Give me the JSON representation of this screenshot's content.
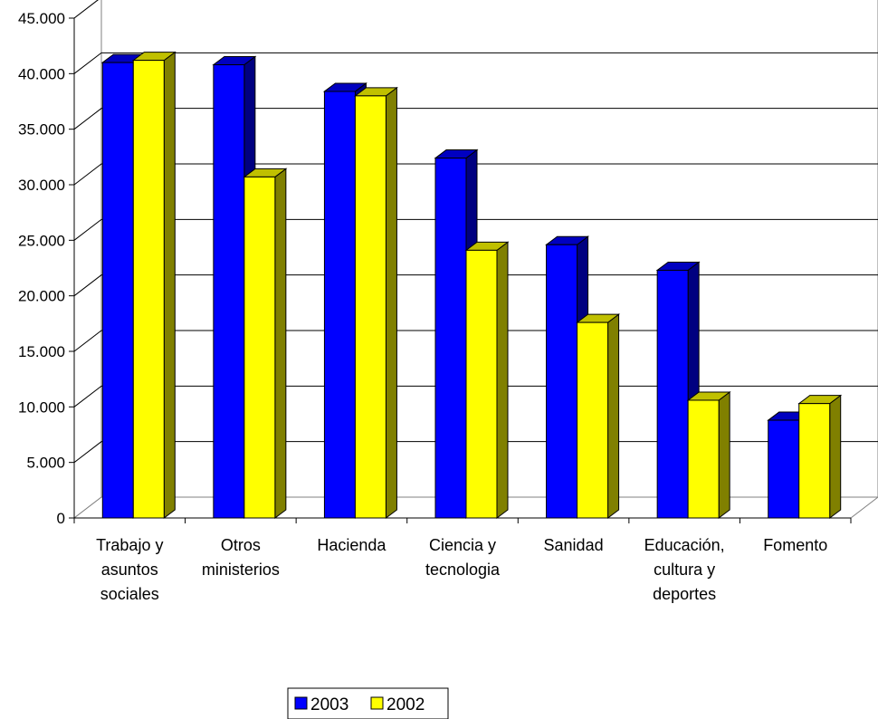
{
  "chart_data": {
    "type": "bar",
    "categories": [
      [
        "Trabajo y",
        "asuntos",
        "sociales"
      ],
      [
        "Otros",
        "ministerios"
      ],
      [
        "Hacienda"
      ],
      [
        "Ciencia y",
        "tecnologia"
      ],
      [
        "Sanidad"
      ],
      [
        "Educación,",
        "cultura y",
        "deportes"
      ],
      [
        "Fomento"
      ]
    ],
    "series": [
      {
        "name": "2003",
        "values": [
          41000,
          40800,
          38400,
          32400,
          24600,
          22300,
          8800
        ],
        "color": "#0000ff",
        "side_color": "#000080"
      },
      {
        "name": "2002",
        "values": [
          41200,
          30700,
          38000,
          24100,
          17600,
          10600,
          10300
        ],
        "color": "#ffff00",
        "side_color": "#808000"
      }
    ],
    "ylim": [
      0,
      45000
    ],
    "yticks": [
      "0",
      "5.000",
      "10.000",
      "15.000",
      "20.000",
      "25.000",
      "30.000",
      "35.000",
      "40.000",
      "45.000"
    ],
    "grid": true,
    "legend_position": "bottom"
  }
}
